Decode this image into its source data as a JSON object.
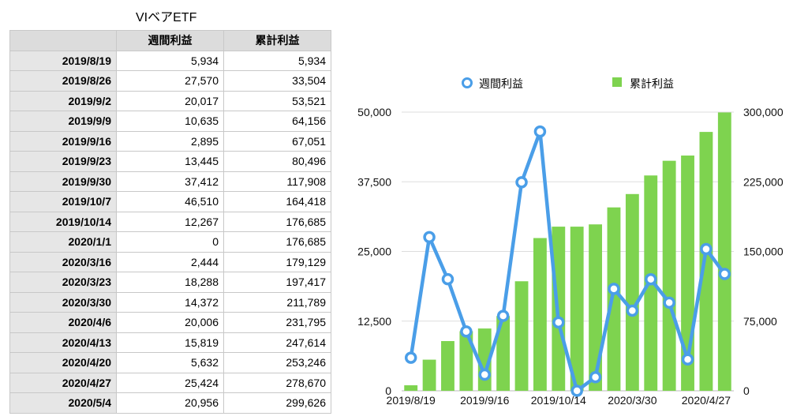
{
  "title": "VIベアETF",
  "table": {
    "headers": [
      "",
      "週間利益",
      "累計利益"
    ],
    "rows": [
      [
        "2019/8/19",
        "5,934",
        "5,934"
      ],
      [
        "2019/8/26",
        "27,570",
        "33,504"
      ],
      [
        "2019/9/2",
        "20,017",
        "53,521"
      ],
      [
        "2019/9/9",
        "10,635",
        "64,156"
      ],
      [
        "2019/9/16",
        "2,895",
        "67,051"
      ],
      [
        "2019/9/23",
        "13,445",
        "80,496"
      ],
      [
        "2019/9/30",
        "37,412",
        "117,908"
      ],
      [
        "2019/10/7",
        "46,510",
        "164,418"
      ],
      [
        "2019/10/14",
        "12,267",
        "176,685"
      ],
      [
        "2020/1/1",
        "0",
        "176,685"
      ],
      [
        "2020/3/16",
        "2,444",
        "179,129"
      ],
      [
        "2020/3/23",
        "18,288",
        "197,417"
      ],
      [
        "2020/3/30",
        "14,372",
        "211,789"
      ],
      [
        "2020/4/6",
        "20,006",
        "231,795"
      ],
      [
        "2020/4/13",
        "15,819",
        "247,614"
      ],
      [
        "2020/4/20",
        "5,632",
        "253,246"
      ],
      [
        "2020/4/27",
        "25,424",
        "278,670"
      ],
      [
        "2020/5/4",
        "20,956",
        "299,626"
      ]
    ]
  },
  "chart_data": {
    "type": "bar",
    "categories": [
      "2019/8/19",
      "2019/8/26",
      "2019/9/2",
      "2019/9/9",
      "2019/9/16",
      "2019/9/23",
      "2019/9/30",
      "2019/10/7",
      "2019/10/14",
      "2020/1/1",
      "2020/3/16",
      "2020/3/23",
      "2020/3/30",
      "2020/4/6",
      "2020/4/13",
      "2020/4/20",
      "2020/4/27",
      "2020/5/4"
    ],
    "series": [
      {
        "name": "週間利益",
        "kind": "line",
        "axis": "left",
        "color": "#4a9ee8",
        "values": [
          5934,
          27570,
          20017,
          10635,
          2895,
          13445,
          37412,
          46510,
          12267,
          0,
          2444,
          18288,
          14372,
          20006,
          15819,
          5632,
          25424,
          20956
        ]
      },
      {
        "name": "累計利益",
        "kind": "bar",
        "axis": "right",
        "color": "#7ed34f",
        "values": [
          5934,
          33504,
          53521,
          64156,
          67051,
          80496,
          117908,
          164418,
          176685,
          176685,
          179129,
          197417,
          211789,
          231795,
          247614,
          253246,
          278670,
          299626
        ]
      }
    ],
    "ylim_left": [
      0,
      50000
    ],
    "ylim_right": [
      0,
      300000
    ],
    "yticks_left": [
      "0",
      "12,500",
      "25,000",
      "37,500",
      "50,000"
    ],
    "yticks_right": [
      "0",
      "75,000",
      "150,000",
      "225,000",
      "300,000"
    ],
    "xtick_labels": [
      "2019/8/19",
      "2019/9/16",
      "2019/10/14",
      "2020/3/30",
      "2020/4/27"
    ],
    "xtick_indices": [
      0,
      4,
      8,
      12,
      16
    ],
    "grid": true,
    "legend_position": "top"
  }
}
